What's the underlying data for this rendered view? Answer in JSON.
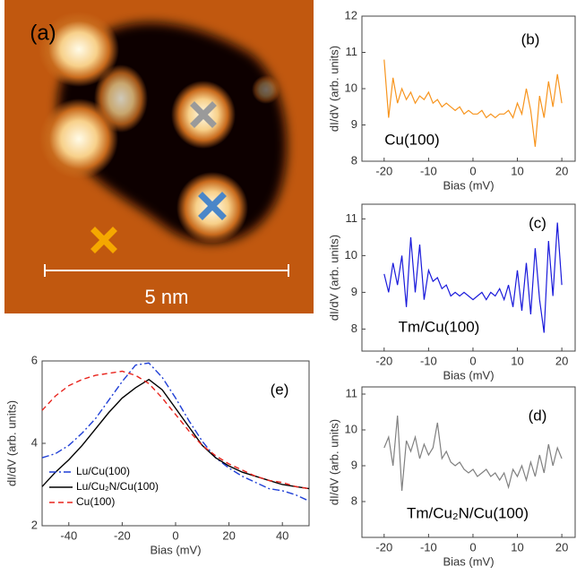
{
  "chart_data": [
    {
      "type": "image",
      "label": "(a)",
      "scale_bar_label": "5 nm"
    },
    {
      "type": "line",
      "annotations": [
        "(b)",
        "Cu(100)"
      ],
      "xlabel": "Bias (mV)",
      "ylabel": "dI/dV (arb. units)",
      "x": [
        -20,
        -19,
        -18,
        -17,
        -16,
        -15,
        -14,
        -13,
        -12,
        -11,
        -10,
        -9,
        -8,
        -7,
        -6,
        -5,
        -4,
        -3,
        -2,
        -1,
        0,
        1,
        2,
        3,
        4,
        5,
        6,
        7,
        8,
        9,
        10,
        11,
        12,
        13,
        14,
        15,
        16,
        17,
        18,
        19,
        20
      ],
      "values": [
        10.8,
        9.2,
        10.3,
        9.6,
        10.0,
        9.7,
        9.9,
        9.6,
        9.8,
        9.7,
        9.9,
        9.6,
        9.7,
        9.5,
        9.6,
        9.5,
        9.4,
        9.5,
        9.3,
        9.4,
        9.3,
        9.3,
        9.4,
        9.2,
        9.3,
        9.2,
        9.3,
        9.3,
        9.4,
        9.2,
        9.6,
        9.3,
        10.0,
        9.4,
        8.4,
        9.8,
        9.2,
        10.2,
        9.5,
        10.4,
        9.6
      ],
      "color": "#f7941d",
      "xlim": [
        -25,
        23
      ],
      "ylim": [
        8,
        12
      ],
      "xticks": [
        -20,
        -10,
        0,
        10,
        20
      ],
      "yticks": [
        8,
        9,
        10,
        11,
        12
      ]
    },
    {
      "type": "line",
      "annotations": [
        "(c)",
        "Tm/Cu(100)"
      ],
      "xlabel": "Bias (mV)",
      "ylabel": "dI/dV (arb. units)",
      "x": [
        -20,
        -19,
        -18,
        -17,
        -16,
        -15,
        -14,
        -13,
        -12,
        -11,
        -10,
        -9,
        -8,
        -7,
        -6,
        -5,
        -4,
        -3,
        -2,
        -1,
        0,
        1,
        2,
        3,
        4,
        5,
        6,
        7,
        8,
        9,
        10,
        11,
        12,
        13,
        14,
        15,
        16,
        17,
        18,
        19,
        20
      ],
      "values": [
        9.5,
        9.0,
        9.8,
        9.2,
        10.0,
        8.6,
        10.5,
        9.0,
        10.3,
        8.8,
        9.6,
        9.3,
        9.4,
        9.1,
        9.2,
        8.9,
        9.0,
        8.9,
        9.0,
        8.9,
        8.8,
        8.9,
        9.0,
        8.8,
        9.0,
        8.9,
        9.1,
        8.8,
        9.2,
        8.6,
        9.6,
        8.5,
        9.8,
        8.4,
        10.2,
        8.8,
        7.9,
        10.4,
        8.9,
        10.9,
        9.2
      ],
      "color": "#1a1adb",
      "xlim": [
        -25,
        23
      ],
      "ylim": [
        7.4,
        11.4
      ],
      "xticks": [
        -20,
        -10,
        0,
        10,
        20
      ],
      "yticks": [
        8,
        9,
        10,
        11
      ]
    },
    {
      "type": "line",
      "annotations": [
        "(d)",
        "Tm/Cu₂N/Cu(100)"
      ],
      "xlabel": "Bias (mV)",
      "ylabel": "dI/dV (arb. units)",
      "x": [
        -20,
        -19,
        -18,
        -17,
        -16,
        -15,
        -14,
        -13,
        -12,
        -11,
        -10,
        -9,
        -8,
        -7,
        -6,
        -5,
        -4,
        -3,
        -2,
        -1,
        0,
        1,
        2,
        3,
        4,
        5,
        6,
        7,
        8,
        9,
        10,
        11,
        12,
        13,
        14,
        15,
        16,
        17,
        18,
        19,
        20
      ],
      "values": [
        9.5,
        9.8,
        9.0,
        10.4,
        8.3,
        9.7,
        9.4,
        9.8,
        9.2,
        9.6,
        9.3,
        9.5,
        10.2,
        9.2,
        9.4,
        9.1,
        9.0,
        9.1,
        8.9,
        8.8,
        8.9,
        8.7,
        8.8,
        8.9,
        8.7,
        8.8,
        8.6,
        8.8,
        8.4,
        8.9,
        8.7,
        9.0,
        8.6,
        9.1,
        8.7,
        9.3,
        8.8,
        9.6,
        9.0,
        9.5,
        9.2
      ],
      "color": "#808080",
      "xlim": [
        -25,
        23
      ],
      "ylim": [
        7,
        11.2
      ],
      "xticks": [
        -20,
        -10,
        0,
        10,
        20
      ],
      "yticks": [
        8,
        9,
        10,
        11
      ]
    },
    {
      "type": "line",
      "annotations": [
        "(e)"
      ],
      "xlabel": "Bias (mV)",
      "ylabel": "dI/dV (arb. units)",
      "legend": "lower left",
      "x": [
        -50,
        -45,
        -40,
        -35,
        -30,
        -25,
        -20,
        -15,
        -10,
        -5,
        0,
        5,
        10,
        15,
        20,
        25,
        30,
        35,
        40,
        45,
        50
      ],
      "series": [
        {
          "name": "Lu/Cu(100)",
          "color": "#1f3fd6",
          "linestyle": "dashdot",
          "values": [
            3.65,
            3.75,
            3.95,
            4.25,
            4.6,
            5.05,
            5.5,
            5.9,
            5.95,
            5.6,
            5.1,
            4.55,
            4.05,
            3.65,
            3.4,
            3.2,
            3.05,
            2.9,
            2.85,
            2.75,
            2.6
          ]
        },
        {
          "name": "Lu/Cu₂N/Cu(100)",
          "color": "#000000",
          "linestyle": "solid",
          "values": [
            2.95,
            3.3,
            3.6,
            3.95,
            4.35,
            4.75,
            5.1,
            5.35,
            5.55,
            5.3,
            4.85,
            4.4,
            3.95,
            3.65,
            3.45,
            3.3,
            3.2,
            3.1,
            3.0,
            2.95,
            2.9
          ]
        },
        {
          "name": "Cu(100)",
          "color": "#e8231c",
          "linestyle": "dashed",
          "values": [
            4.8,
            5.15,
            5.4,
            5.55,
            5.65,
            5.7,
            5.75,
            5.65,
            5.45,
            5.1,
            4.7,
            4.3,
            3.95,
            3.7,
            3.5,
            3.35,
            3.2,
            3.1,
            3.05,
            2.95,
            2.9
          ]
        }
      ],
      "xlim": [
        -50,
        50
      ],
      "ylim": [
        2,
        6
      ],
      "xticks": [
        -40,
        -20,
        0,
        20,
        40
      ],
      "yticks": [
        2,
        4,
        6
      ]
    }
  ]
}
